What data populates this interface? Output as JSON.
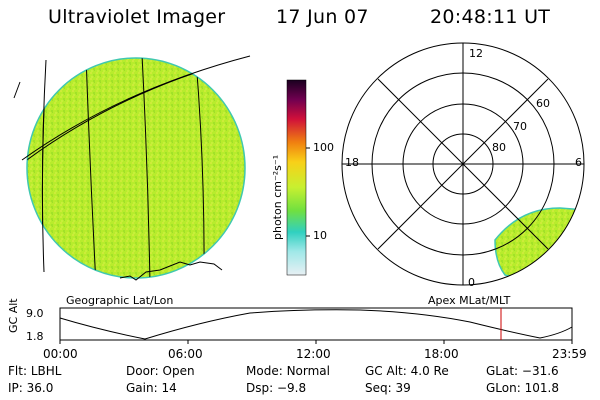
{
  "header": {
    "instrument": "Ultraviolet Imager",
    "date": "17 Jun 07",
    "time": "20:48:11 UT"
  },
  "geographic_panel": {
    "label": "Geographic Lat/Lon",
    "fill_color": "#b6ec2a"
  },
  "colorbar": {
    "unit_label": "photon cm⁻²s⁻¹",
    "ticks": [
      "100",
      "10"
    ],
    "scale": "log"
  },
  "polar_panel": {
    "label": "Apex MLat/MLT",
    "mlt_labels": {
      "top": "12",
      "left": "18",
      "right": "6",
      "bottom": "0"
    },
    "lat_labels": [
      "60",
      "70",
      "80"
    ]
  },
  "altitude_plot": {
    "ylabel": "GC Alt",
    "yticks": [
      "9.0",
      "1.8"
    ],
    "xticks": [
      "00:00",
      "06:00",
      "12:00",
      "18:00",
      "23:59"
    ],
    "current_time_marker_color": "#cc0000"
  },
  "status": {
    "row1": [
      {
        "label": "Flt:",
        "value": "LBHL"
      },
      {
        "label": "Door:",
        "value": "Open"
      },
      {
        "label": "Mode:",
        "value": "Normal"
      },
      {
        "label": "GC Alt:",
        "value": "4.0 Re"
      },
      {
        "label": "GLat:",
        "value": "−31.6"
      }
    ],
    "row2": [
      {
        "label": "IP:",
        "value": "36.0"
      },
      {
        "label": "Gain:",
        "value": "14"
      },
      {
        "label": "Dsp:",
        "value": "−9.8"
      },
      {
        "label": "Seq:",
        "value": "39"
      },
      {
        "label": "GLon:",
        "value": "101.8"
      }
    ]
  }
}
